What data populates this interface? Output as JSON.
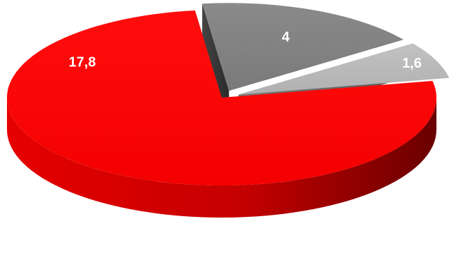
{
  "chart_data": {
    "type": "pie",
    "style": "3d-exploded",
    "slices": [
      {
        "label": "17,8",
        "value": 17.8,
        "color": "#ff0000",
        "side_color": "#b30000"
      },
      {
        "label": "4",
        "value": 4.0,
        "color": "#7f7f7f",
        "side_color": "#3a3a3a"
      },
      {
        "label": "1,6",
        "value": 1.6,
        "color": "#b8b8b8",
        "side_color": "#6b6b6b"
      }
    ],
    "title": "",
    "legend": "none"
  }
}
